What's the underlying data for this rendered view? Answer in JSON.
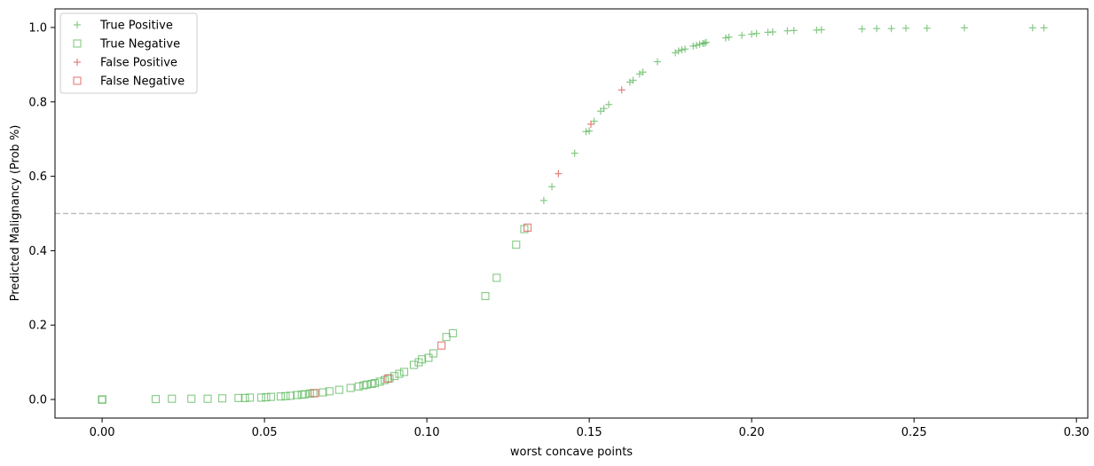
{
  "chart_data": {
    "type": "scatter",
    "xlabel": "worst concave points",
    "ylabel": "Predicted Malignancy (Prob %)",
    "xlim": [
      -0.0145,
      0.3035
    ],
    "ylim": [
      -0.05,
      1.05
    ],
    "xticks": [
      0.0,
      0.05,
      0.1,
      0.15,
      0.2,
      0.25,
      0.3
    ],
    "xtick_labels": [
      "0.00",
      "0.05",
      "0.10",
      "0.15",
      "0.20",
      "0.25",
      "0.30"
    ],
    "yticks": [
      0.0,
      0.2,
      0.4,
      0.6,
      0.8,
      1.0
    ],
    "ytick_labels": [
      "0.0",
      "0.2",
      "0.4",
      "0.6",
      "0.8",
      "1.0"
    ],
    "threshold": 0.5,
    "threshold_color": "#bfbfbf",
    "legend_position": "top-left",
    "grid": false,
    "series": [
      {
        "name": "True Positive",
        "marker": "plus",
        "color": "#5cb85c",
        "x": [
          0.136,
          0.1385,
          0.1455,
          0.149,
          0.15,
          0.1515,
          0.1535,
          0.1545,
          0.156,
          0.1625,
          0.1635,
          0.1655,
          0.1665,
          0.171,
          0.1765,
          0.1775,
          0.1785,
          0.1795,
          0.182,
          0.183,
          0.184,
          0.185,
          0.1855,
          0.186,
          0.192,
          0.193,
          0.197,
          0.2,
          0.2015,
          0.205,
          0.2065,
          0.211,
          0.213,
          0.22,
          0.2215,
          0.234,
          0.2385,
          0.243,
          0.2475,
          0.254,
          0.2655,
          0.2865,
          0.29
        ],
        "y": [
          0.535,
          0.572,
          0.662,
          0.72,
          0.722,
          0.748,
          0.775,
          0.782,
          0.793,
          0.853,
          0.858,
          0.875,
          0.88,
          0.908,
          0.932,
          0.937,
          0.94,
          0.942,
          0.95,
          0.952,
          0.955,
          0.957,
          0.958,
          0.96,
          0.972,
          0.974,
          0.979,
          0.982,
          0.984,
          0.987,
          0.988,
          0.991,
          0.992,
          0.993,
          0.994,
          0.996,
          0.997,
          0.997,
          0.998,
          0.998,
          0.999,
          0.999,
          0.999
        ]
      },
      {
        "name": "True Negative",
        "marker": "square",
        "color": "#5cb85c",
        "x": [
          0.0,
          0.0,
          0.0,
          0.0,
          0.0165,
          0.0215,
          0.0275,
          0.0325,
          0.037,
          0.042,
          0.044,
          0.0455,
          0.049,
          0.0505,
          0.052,
          0.055,
          0.0565,
          0.058,
          0.06,
          0.0615,
          0.0625,
          0.064,
          0.065,
          0.068,
          0.07,
          0.073,
          0.0765,
          0.079,
          0.0805,
          0.0815,
          0.083,
          0.084,
          0.0855,
          0.087,
          0.0885,
          0.09,
          0.0915,
          0.093,
          0.096,
          0.0975,
          0.0985,
          0.1005,
          0.102,
          0.106,
          0.108,
          0.118,
          0.1215,
          0.1275,
          0.13
        ],
        "y": [
          0.0,
          0.0,
          0.0,
          0.0,
          0.001,
          0.002,
          0.002,
          0.002,
          0.003,
          0.004,
          0.004,
          0.005,
          0.005,
          0.006,
          0.007,
          0.008,
          0.009,
          0.01,
          0.012,
          0.013,
          0.014,
          0.016,
          0.017,
          0.019,
          0.022,
          0.026,
          0.031,
          0.035,
          0.038,
          0.04,
          0.042,
          0.044,
          0.048,
          0.052,
          0.057,
          0.063,
          0.069,
          0.074,
          0.093,
          0.1,
          0.108,
          0.112,
          0.124,
          0.168,
          0.178,
          0.278,
          0.327,
          0.416,
          0.458
        ]
      },
      {
        "name": "False Positive",
        "marker": "plus",
        "color": "#d9534f",
        "x": [
          0.1405,
          0.1505,
          0.16
        ],
        "y": [
          0.607,
          0.74,
          0.832
        ]
      },
      {
        "name": "False Negative",
        "marker": "square",
        "color": "#d9534f",
        "x": [
          0.0655,
          0.088,
          0.1045,
          0.131
        ],
        "y": [
          0.017,
          0.056,
          0.145,
          0.462
        ]
      }
    ]
  }
}
